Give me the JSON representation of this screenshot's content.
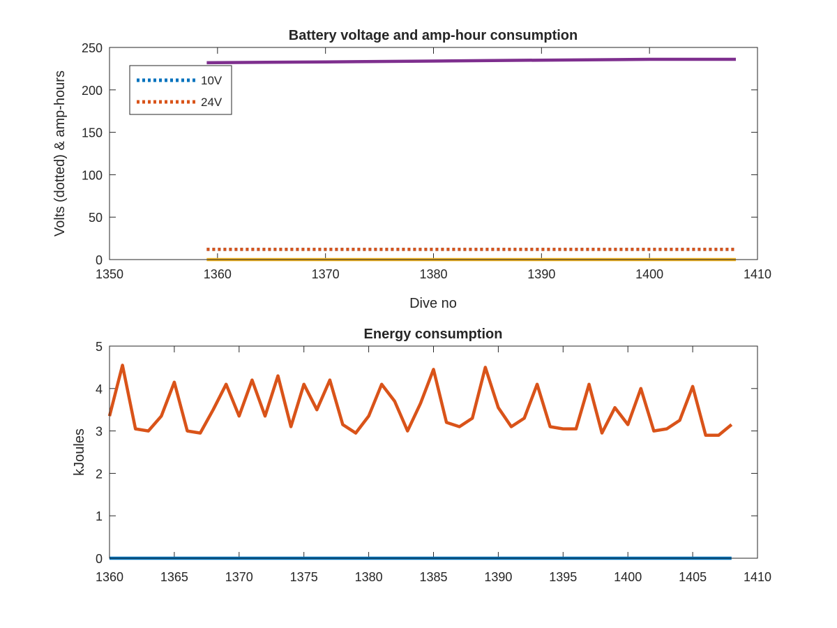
{
  "chart_data": [
    {
      "type": "line",
      "title": "Battery voltage and amp-hour consumption",
      "xlabel": "Dive no",
      "ylabel": "Volts (dotted) & amp-hours",
      "xlim": [
        1350,
        1410
      ],
      "ylim": [
        0,
        250
      ],
      "xticks": [
        "1350",
        "1360",
        "1370",
        "1380",
        "1390",
        "1400",
        "1410"
      ],
      "yticks": [
        "0",
        "50",
        "100",
        "150",
        "200",
        "250"
      ],
      "legend_position": "top-left",
      "series": [
        {
          "name": "10V",
          "style": "dotted",
          "color": "#0072BD",
          "x": [
            1359,
            1408
          ],
          "y": [
            12,
            12
          ]
        },
        {
          "name": "24V",
          "style": "dotted",
          "color": "#D95319",
          "x": [
            1359,
            1408
          ],
          "y": [
            12,
            12
          ]
        },
        {
          "style": "solid",
          "color": "#EDB120",
          "x": [
            1359,
            1408
          ],
          "y": [
            0,
            0
          ]
        },
        {
          "style": "solid",
          "color": "#7E2F8E",
          "x": [
            1359,
            1370,
            1380,
            1390,
            1400,
            1408
          ],
          "y": [
            232,
            233,
            234,
            235,
            236,
            236
          ]
        }
      ]
    },
    {
      "type": "line",
      "title": "Energy consumption",
      "xlabel": "",
      "ylabel": "kJoules",
      "xlim": [
        1360,
        1410
      ],
      "ylim": [
        0,
        5
      ],
      "xticks": [
        "1360",
        "1365",
        "1370",
        "1375",
        "1380",
        "1385",
        "1390",
        "1395",
        "1400",
        "1405",
        "1410"
      ],
      "yticks": [
        "0",
        "1",
        "2",
        "3",
        "4",
        "5"
      ],
      "series": [
        {
          "style": "solid",
          "color": "#0072BD",
          "x": [
            1360,
            1408
          ],
          "y": [
            0,
            0
          ]
        },
        {
          "style": "solid",
          "color": "#D95319",
          "x": [
            1360,
            1361,
            1362,
            1363,
            1364,
            1365,
            1366,
            1367,
            1368,
            1369,
            1370,
            1371,
            1372,
            1373,
            1374,
            1375,
            1376,
            1377,
            1378,
            1379,
            1380,
            1381,
            1382,
            1383,
            1384,
            1385,
            1386,
            1387,
            1388,
            1389,
            1390,
            1391,
            1392,
            1393,
            1394,
            1395,
            1396,
            1397,
            1398,
            1399,
            1400,
            1401,
            1402,
            1403,
            1404,
            1405,
            1406,
            1407,
            1408
          ],
          "y": [
            3.35,
            4.55,
            3.05,
            3.0,
            3.35,
            4.15,
            3.0,
            2.95,
            3.5,
            4.1,
            3.35,
            4.2,
            3.35,
            4.3,
            3.1,
            4.1,
            3.5,
            4.2,
            3.15,
            2.95,
            3.35,
            4.1,
            3.7,
            3.0,
            3.65,
            4.45,
            3.2,
            3.1,
            3.3,
            4.5,
            3.55,
            3.1,
            3.3,
            4.1,
            3.1,
            3.05,
            3.05,
            4.1,
            2.95,
            3.55,
            3.15,
            4.0,
            3.0,
            3.05,
            3.25,
            4.05,
            2.9,
            2.9,
            3.15
          ]
        }
      ]
    }
  ]
}
